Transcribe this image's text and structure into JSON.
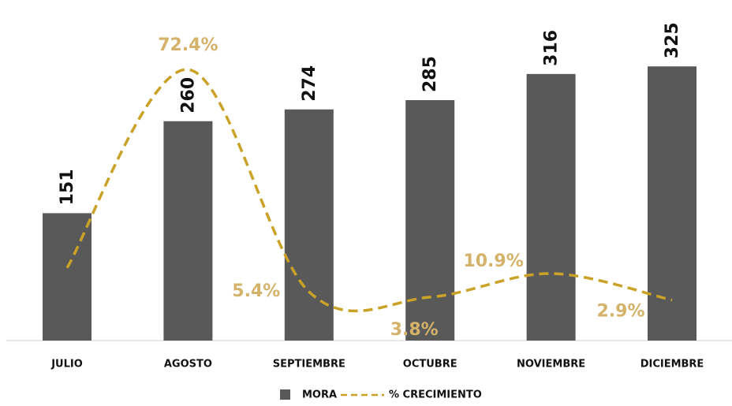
{
  "chart_data": {
    "type": "bar",
    "categories": [
      "JULIO",
      "AGOSTO",
      "SEPTIEMBRE",
      "OCTUBRE",
      "NOVIEMBRE",
      "DICIEMBRE"
    ],
    "ylim": [
      0,
      385
    ],
    "y2lim": [
      -9.3,
      88.6
    ],
    "series": [
      {
        "name": "MORA",
        "type": "bar",
        "color": "#595959",
        "values": [
          151,
          260,
          274,
          285,
          316,
          325
        ]
      },
      {
        "name": "% CRECIMIENTO",
        "type": "line",
        "axis": "y2",
        "color": "#c9a227",
        "values": [
          12.6,
          72.4,
          5.4,
          3.8,
          10.9,
          2.9
        ],
        "value_labels": [
          null,
          "72.4%",
          "5.4%",
          "3.8%",
          "10.9%",
          "2.9%"
        ]
      }
    ]
  }
}
